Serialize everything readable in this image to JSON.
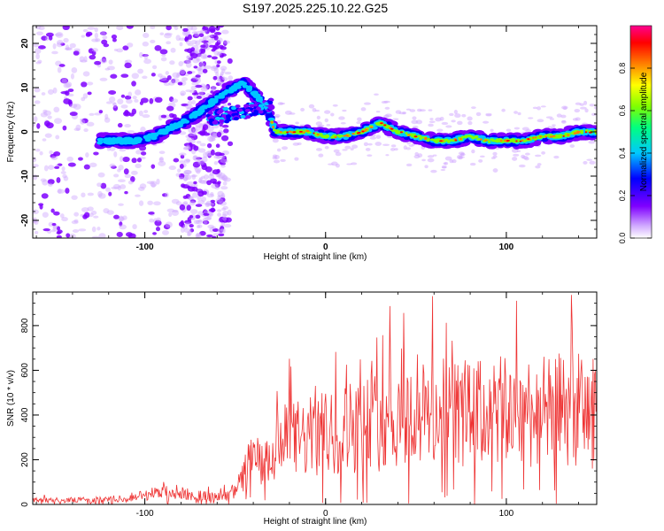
{
  "figure_title": "S197.2025.225.10.22.G25",
  "chart_data": [
    {
      "type": "heatmap",
      "title": "S197.2025.225.10.22.G25",
      "xlabel": "Height of straight line (km)",
      "ylabel": "Frequency (Hz)",
      "xlim": [
        -162,
        150
      ],
      "ylim": [
        -24,
        24
      ],
      "x_ticks": [
        -100,
        0,
        100
      ],
      "x_tick_labels": [
        "-100",
        "0",
        "100"
      ],
      "y_ticks": [
        -20,
        -10,
        0,
        10,
        20
      ],
      "y_tick_labels": [
        "-20",
        "-10",
        "0",
        "10",
        "20"
      ],
      "ridge_x": [
        -125,
        -115,
        -105,
        -95,
        -85,
        -75,
        -65,
        -55,
        -45,
        -38,
        -32,
        -28,
        -20,
        -10,
        0,
        10,
        20,
        30,
        40,
        50,
        60,
        70,
        80,
        90,
        100,
        110,
        120,
        130,
        140,
        150
      ],
      "ridge_freq": [
        -2,
        -2,
        -2,
        -1,
        1,
        3,
        6,
        9,
        11,
        8,
        5,
        0,
        0,
        0,
        -1,
        -1,
        0,
        2,
        0,
        -1,
        -2,
        -2,
        -1,
        -2,
        -2,
        -2,
        -1,
        -1,
        0,
        0
      ],
      "colorbar": {
        "label": "Normalized spectral amplitude",
        "range": [
          0,
          1
        ],
        "ticks": [
          0.0,
          0.2,
          0.4,
          0.6,
          0.8
        ],
        "tick_labels": [
          "0.0",
          "0.2",
          "0.4",
          "0.6",
          "0.8"
        ],
        "colors": [
          "#ffffff",
          "#cfa6ff",
          "#7f00ff",
          "#0000ff",
          "#00c8ff",
          "#00ff80",
          "#80ff00",
          "#ffff00",
          "#ff8000",
          "#ff0000",
          "#ff0090"
        ]
      }
    },
    {
      "type": "line",
      "xlabel": "Height of straight line (km)",
      "ylabel": "SNR (10 * v/v)",
      "xlim": [
        -162,
        150
      ],
      "ylim": [
        0,
        950
      ],
      "x_ticks": [
        -100,
        0,
        100
      ],
      "x_tick_labels": [
        "-100",
        "0",
        "100"
      ],
      "y_ticks": [
        0,
        200,
        400,
        600,
        800
      ],
      "y_tick_labels": [
        "0",
        "200",
        "400",
        "600",
        "800"
      ],
      "line_color": "#ee3333",
      "envelope_x": [
        -162,
        -110,
        -100,
        -90,
        -80,
        -70,
        -60,
        -50,
        -45,
        -40,
        -35,
        -30,
        -25,
        -20,
        -10,
        0,
        10,
        20,
        30,
        40,
        50,
        60,
        70,
        80,
        90,
        100,
        110,
        120,
        130,
        140,
        150
      ],
      "envelope_snr": [
        20,
        25,
        50,
        60,
        55,
        45,
        35,
        60,
        150,
        250,
        180,
        230,
        300,
        320,
        330,
        350,
        380,
        400,
        420,
        430,
        440,
        450,
        460,
        450,
        450,
        460,
        470,
        460,
        470,
        470,
        450
      ]
    }
  ]
}
